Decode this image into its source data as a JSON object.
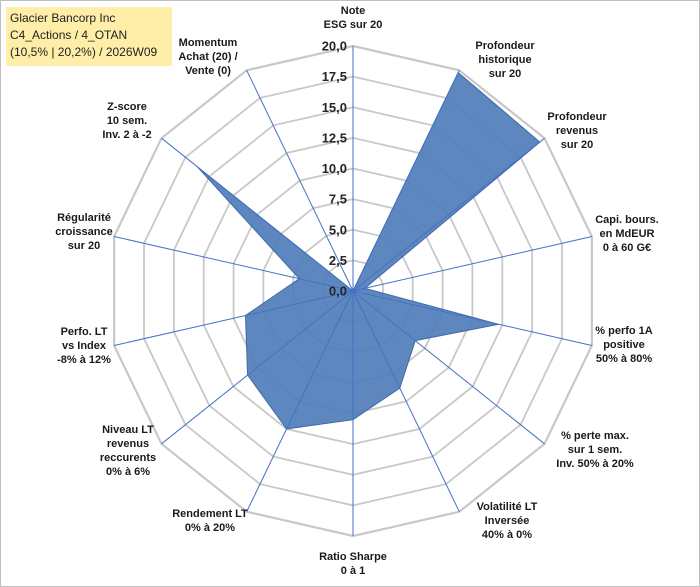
{
  "info_box": {
    "line1": "Glacier Bancorp Inc",
    "line2": "C4_Actions / 4_OTAN",
    "line3": "(10,5% | 20,2%) / 2026W09"
  },
  "colors": {
    "fill": "#4f7db8",
    "stroke": "#3e6aa6",
    "spoke": "#4472c4",
    "ring": "#c8c8c8",
    "info_bg": "#ffeea8"
  },
  "chart_data": {
    "type": "radar",
    "scale": {
      "min": 0,
      "max": 20,
      "step": 2.5
    },
    "tick_labels": [
      "0,0",
      "2,5",
      "5,0",
      "7,5",
      "10,0",
      "12,5",
      "15,0",
      "17,5",
      "20,0"
    ],
    "axes": [
      {
        "lines": [
          "Note",
          "ESG sur 20"
        ]
      },
      {
        "lines": [
          "Profondeur",
          "historique",
          "sur 20"
        ]
      },
      {
        "lines": [
          "Profondeur",
          "revenus",
          "sur 20"
        ]
      },
      {
        "lines": [
          "Capi. bours.",
          "en MdEUR",
          "0 à 60 G€"
        ]
      },
      {
        "lines": [
          "% perfo 1A",
          "positive",
          "50% à 80%"
        ]
      },
      {
        "lines": [
          "% perte max.",
          "sur 1 sem.",
          "Inv. 50% à 20%"
        ]
      },
      {
        "lines": [
          "Volatilité LT",
          "Inversée",
          "40% à 0%"
        ]
      },
      {
        "lines": [
          "Ratio Sharpe",
          "0 à 1"
        ]
      },
      {
        "lines": [
          "Rendement LT",
          "0% à 20%"
        ]
      },
      {
        "lines": [
          "Niveau LT",
          "revenus",
          "reccurents",
          "0% à 6%"
        ]
      },
      {
        "lines": [
          "Perfo. LT",
          "vs Index",
          "-8% à 12%"
        ]
      },
      {
        "lines": [
          "Régularité",
          "croissance",
          "sur 20"
        ]
      },
      {
        "lines": [
          "Z-score",
          "10 sem.",
          "Inv. 2 à -2"
        ]
      },
      {
        "lines": [
          "Momentum",
          "Achat (20) /",
          "Vente (0)"
        ]
      }
    ],
    "values": [
      0,
      19.8,
      19.5,
      1.0,
      12.2,
      6.5,
      8.8,
      10.5,
      12.5,
      11.0,
      9.0,
      4.5,
      16.2,
      0
    ],
    "grid": true,
    "legend": "none"
  }
}
